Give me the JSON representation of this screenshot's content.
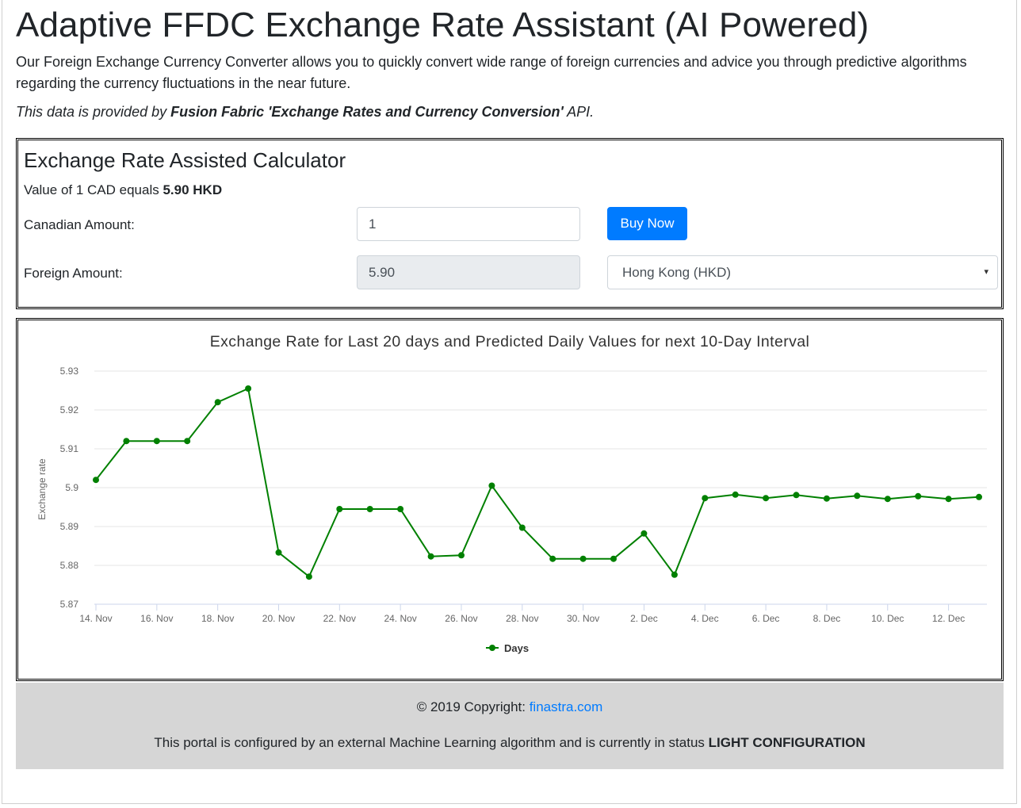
{
  "header": {
    "title": "Adaptive FFDC Exchange Rate Assistant (AI Powered)",
    "intro": "Our Foreign Exchange Currency Converter allows you to quickly convert wide range of foreign currencies and advice you through predictive algorithms regarding the currency fluctuations in the near future.",
    "source_prefix": "This data is provided by ",
    "source_name": "Fusion Fabric 'Exchange Rates and Currency Conversion'",
    "source_suffix": " API."
  },
  "calculator": {
    "title": "Exchange Rate Assisted Calculator",
    "rate_prefix": "Value of 1 CAD equals ",
    "rate_value": "5.90 HKD",
    "canadian_label": "Canadian Amount:",
    "canadian_value": "1",
    "buy_label": "Buy Now",
    "foreign_label": "Foreign Amount:",
    "foreign_value": "5.90",
    "currency_selected": "Hong Kong (HKD)",
    "caret_icon": "▾"
  },
  "chart_data": {
    "type": "line",
    "title": "Exchange Rate for Last 20 days and Predicted Daily Values for next 10-Day Interval",
    "ylabel": "Exchange rate",
    "xlabel": "",
    "ylim": [
      5.87,
      5.93
    ],
    "yticks": [
      "5.87",
      "5.88",
      "5.89",
      "5.9",
      "5.91",
      "5.92",
      "5.93"
    ],
    "xticks": [
      "14. Nov",
      "16. Nov",
      "18. Nov",
      "20. Nov",
      "22. Nov",
      "24. Nov",
      "26. Nov",
      "28. Nov",
      "30. Nov",
      "2. Dec",
      "4. Dec",
      "6. Dec",
      "8. Dec",
      "10. Dec",
      "12. Dec"
    ],
    "x_start": "2019-11-14",
    "x_end": "2019-12-13",
    "color": "#008000",
    "grid": true,
    "legend": "bottom-center",
    "series": [
      {
        "name": "Days",
        "x": [
          "2019-11-14",
          "2019-11-15",
          "2019-11-16",
          "2019-11-17",
          "2019-11-18",
          "2019-11-19",
          "2019-11-20",
          "2019-11-21",
          "2019-11-22",
          "2019-11-23",
          "2019-11-24",
          "2019-11-25",
          "2019-11-26",
          "2019-11-27",
          "2019-11-28",
          "2019-11-29",
          "2019-11-30",
          "2019-12-01",
          "2019-12-02",
          "2019-12-03",
          "2019-12-04",
          "2019-12-05",
          "2019-12-06",
          "2019-12-07",
          "2019-12-08",
          "2019-12-09",
          "2019-12-10",
          "2019-12-11",
          "2019-12-12",
          "2019-12-13"
        ],
        "values": [
          5.902,
          5.912,
          5.912,
          5.912,
          5.922,
          5.9255,
          5.8833,
          5.8771,
          5.8945,
          5.8945,
          5.8945,
          5.8823,
          5.8826,
          5.9005,
          5.8897,
          5.8817,
          5.8817,
          5.8817,
          5.8882,
          5.8776,
          5.8973,
          5.8982,
          5.8973,
          5.8981,
          5.8972,
          5.8979,
          5.8971,
          5.8978,
          5.8971,
          5.8976
        ]
      }
    ]
  },
  "footer": {
    "copyright_prefix": "© 2019 Copyright: ",
    "copyright_link": "finastra.com",
    "status_prefix": "This portal is configured by an external Machine Learning algorithm and is currently in status ",
    "status_value": "LIGHT CONFIGURATION"
  }
}
